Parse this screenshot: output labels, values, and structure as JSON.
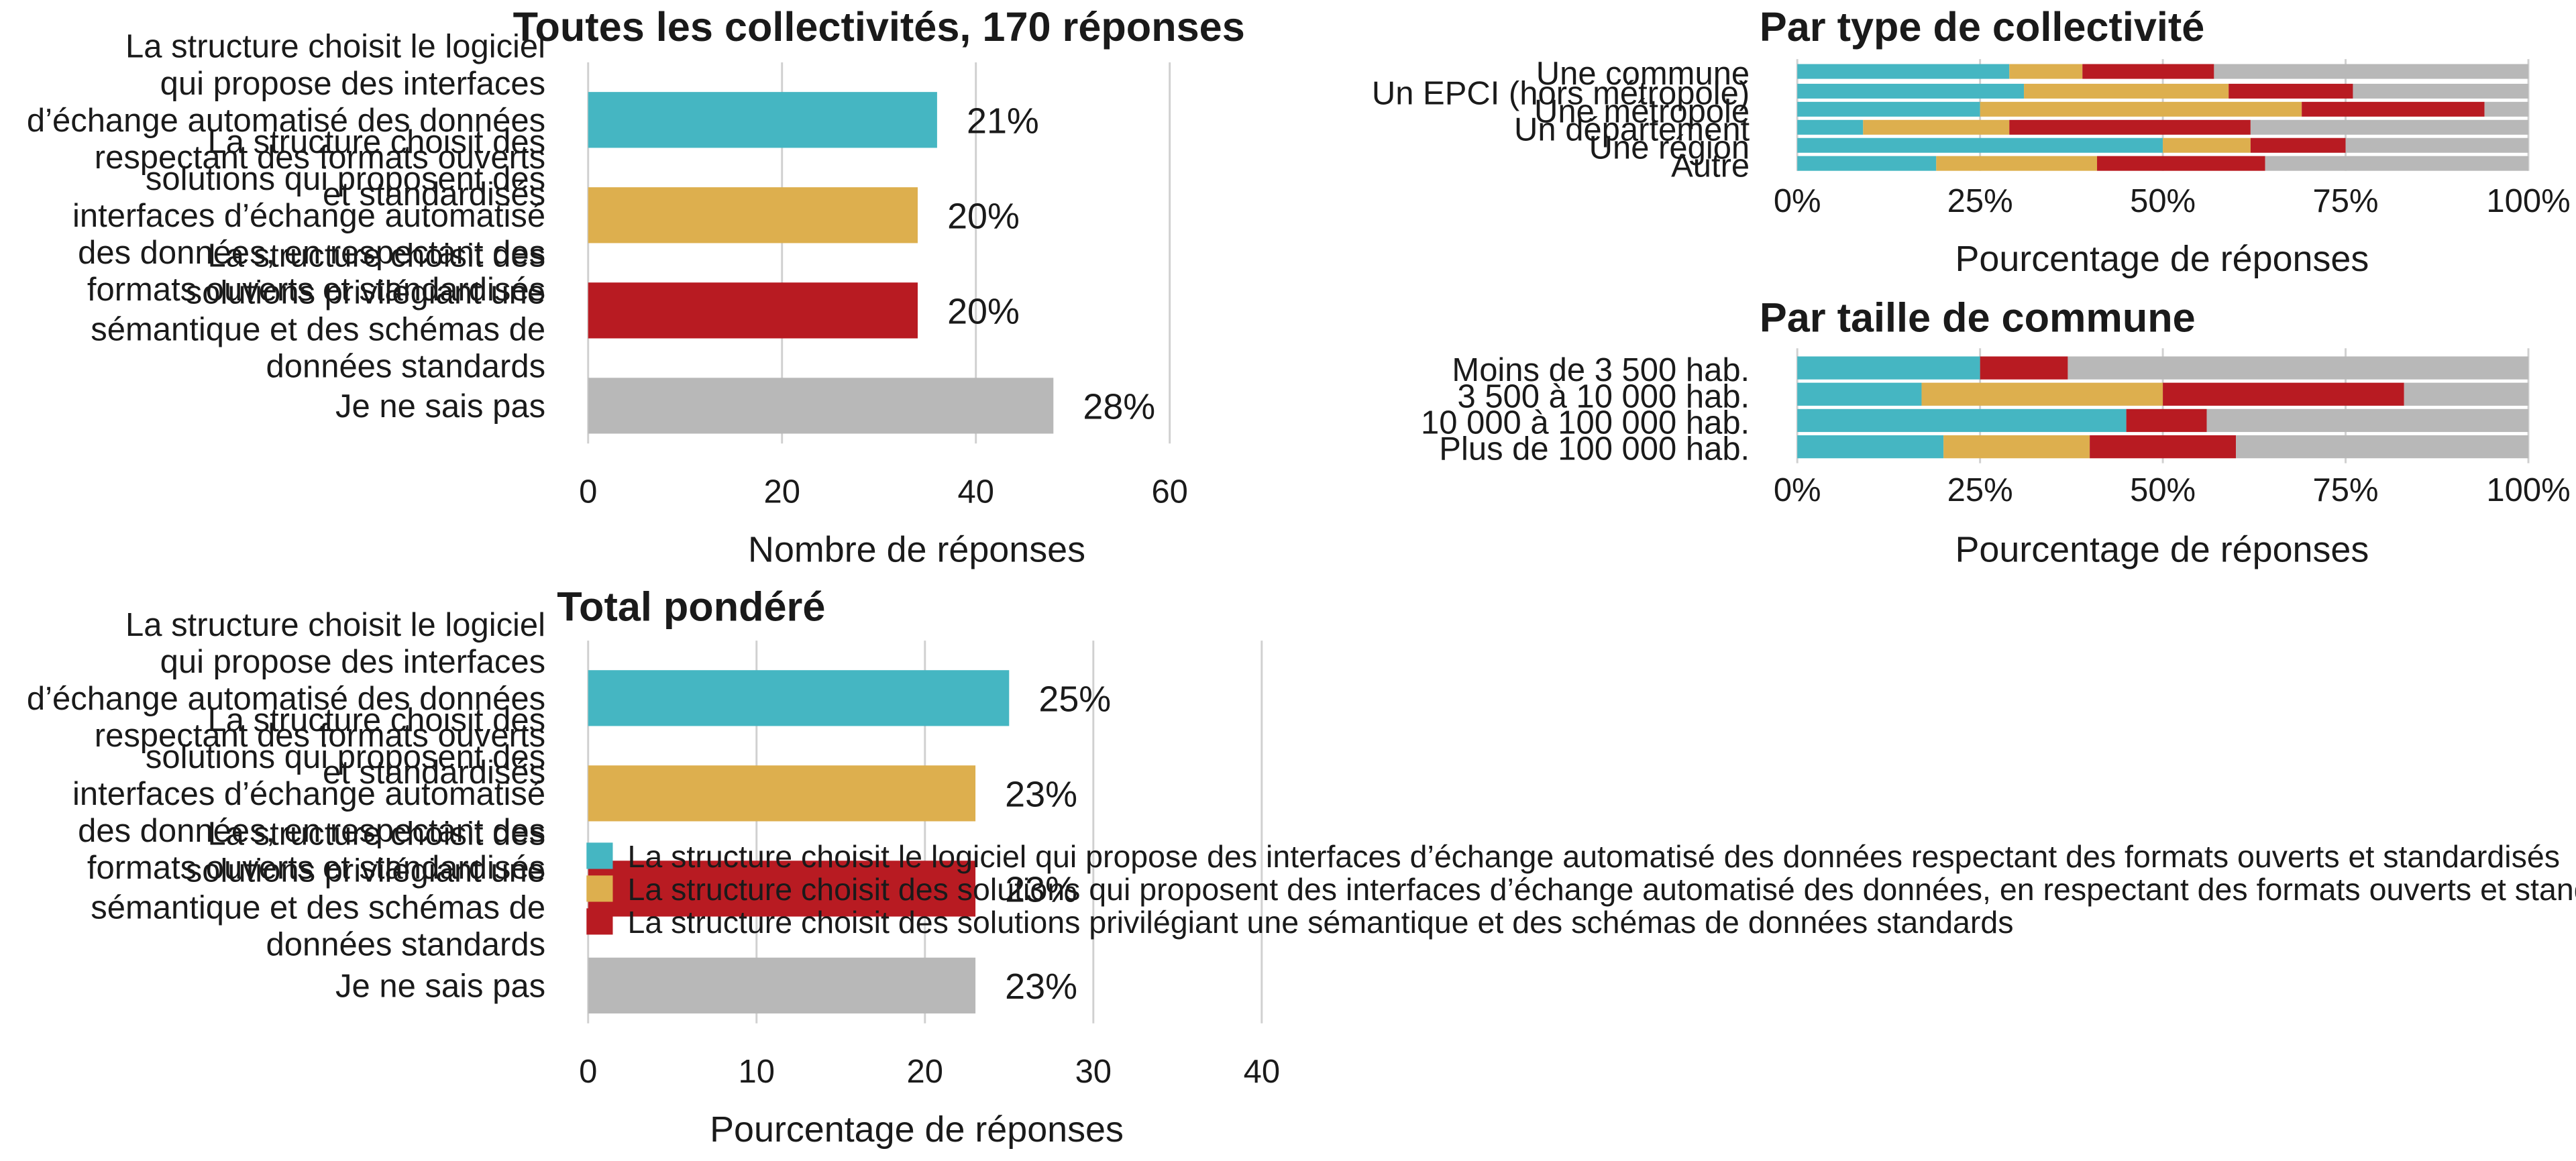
{
  "colors": {
    "teal": "#45B6C2",
    "gold": "#DDAF4E",
    "red": "#B81B22",
    "grey": "#B8B8B8",
    "grid": "#D0D0D0",
    "text": "#1A1A1A"
  },
  "chart_data": [
    {
      "id": "all",
      "type": "bar",
      "orientation": "horizontal",
      "title": "Toutes les collectivités, 170 réponses",
      "xlabel": "Nombre de réponses",
      "categories": [
        "La structure choisit le logiciel qui propose des interfaces d’échange automatisé des données respectant des formats ouverts et standardisés",
        "La structure choisit des solutions qui proposent des interfaces d’échange automatisé des données, en respectant des formats ouverts et standardisés",
        "La structure choisit des solutions privilégiant une sémantique et des schémas de données standards",
        "Je ne sais pas"
      ],
      "values": [
        36,
        34,
        34,
        48
      ],
      "data_labels": [
        "21%",
        "20%",
        "20%",
        "28%"
      ],
      "xlim": [
        0,
        60
      ],
      "xticks": [
        0,
        20,
        40,
        60
      ],
      "grid": true
    },
    {
      "id": "weighted",
      "type": "bar",
      "orientation": "horizontal",
      "title": "Total pondéré",
      "xlabel": "Pourcentage de réponses",
      "categories": [
        "La structure choisit le logiciel qui propose des interfaces d’échange automatisé des données respectant des formats ouverts et standardisés",
        "La structure choisit des solutions qui proposent des interfaces d’échange automatisé des données, en respectant des formats ouverts et standardisés",
        "La structure choisit des solutions privilégiant une sémantique et des schémas de données standards",
        "Je ne sais pas"
      ],
      "values": [
        25,
        23,
        23,
        23
      ],
      "data_labels": [
        "25%",
        "23%",
        "23%",
        "23%"
      ],
      "xlim": [
        0,
        40
      ],
      "xticks": [
        0,
        10,
        20,
        30,
        40
      ],
      "grid": true
    },
    {
      "id": "type",
      "type": "bar",
      "orientation": "horizontal",
      "stacked": "percent",
      "title": "Par type de collectivité",
      "xlabel": "Pourcentage de réponses",
      "categories": [
        "Une commune",
        "Un EPCI (hors métropole)",
        "Une métropole",
        "Un département",
        "Une région",
        "Autre"
      ],
      "series": [
        {
          "values": [
            0.29,
            0.31,
            0.25,
            0.09,
            0.5,
            0.19
          ]
        },
        {
          "values": [
            0.1,
            0.28,
            0.44,
            0.2,
            0.12,
            0.22
          ]
        },
        {
          "values": [
            0.18,
            0.17,
            0.25,
            0.33,
            0.13,
            0.23
          ]
        },
        {
          "values": [
            0.43,
            0.24,
            0.06,
            0.38,
            0.25,
            0.36
          ]
        }
      ],
      "xlim": [
        0,
        1
      ],
      "xticks": [
        "0%",
        "25%",
        "50%",
        "75%",
        "100%"
      ],
      "grid": true
    },
    {
      "id": "size",
      "type": "bar",
      "orientation": "horizontal",
      "stacked": "percent",
      "title": "Par taille de commune",
      "xlabel": "Pourcentage de réponses",
      "categories": [
        "Moins de 3 500 hab.",
        "3 500 à 10 000 hab.",
        "10 000 à 100 000 hab.",
        "Plus de 100 000 hab."
      ],
      "series": [
        {
          "values": [
            0.25,
            0.17,
            0.45,
            0.2
          ]
        },
        {
          "values": [
            0.0,
            0.33,
            0.0,
            0.2
          ]
        },
        {
          "values": [
            0.12,
            0.33,
            0.11,
            0.2
          ]
        },
        {
          "values": [
            0.63,
            0.17,
            0.44,
            0.4
          ]
        }
      ],
      "xlim": [
        0,
        1
      ],
      "xticks": [
        "0%",
        "25%",
        "50%",
        "75%",
        "100%"
      ],
      "grid": true
    }
  ],
  "legend": {
    "placement": "bottom-right",
    "items": [
      "La structure choisit le logiciel qui propose des interfaces d’échange automatisé des données respectant des formats ouverts et standardisés",
      "La structure choisit des solutions qui proposent des interfaces d’échange automatisé des données, en respectant des formats ouverts et standardisés",
      "La structure choisit des solutions privilégiant une sémantique et des schémas de données standards"
    ]
  }
}
